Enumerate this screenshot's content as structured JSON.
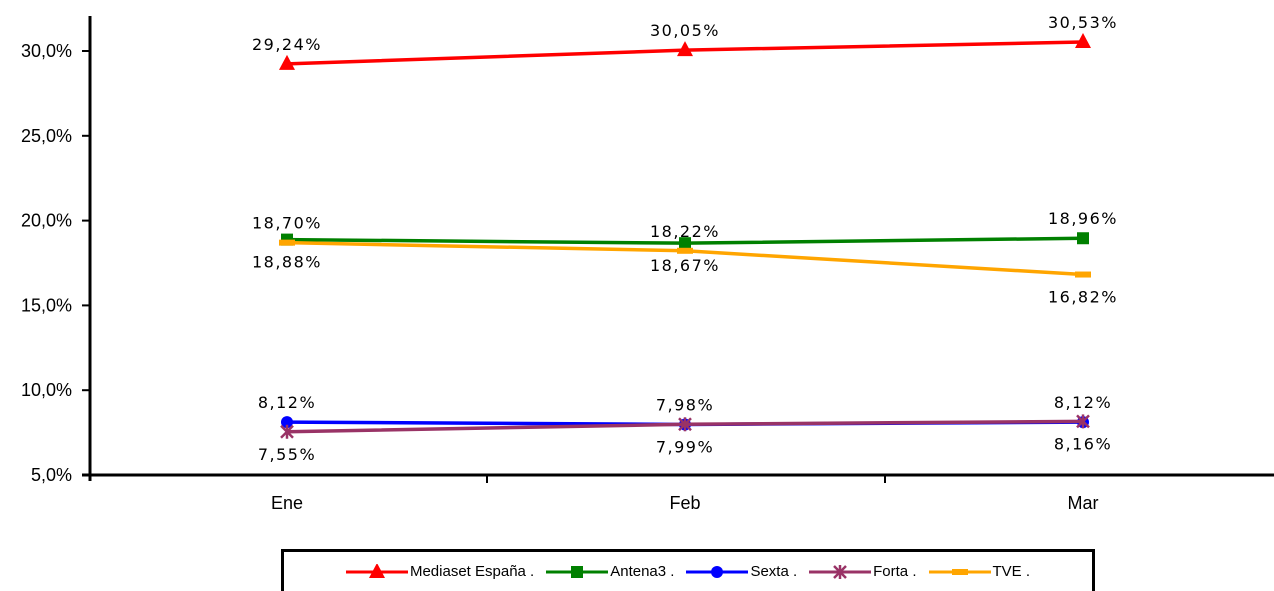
{
  "chart_data": {
    "type": "line",
    "categories": [
      "Ene",
      "Feb",
      "Mar"
    ],
    "ylim": [
      5,
      30
    ],
    "yticks": [
      5,
      10,
      15,
      20,
      25,
      30
    ],
    "ytick_labels": [
      "5,0%",
      "10,0%",
      "15,0%",
      "20,0%",
      "25,0%",
      "30,0%"
    ],
    "legend_position": "bottom",
    "grid": false,
    "series": [
      {
        "name": "Mediaset España .",
        "color": "#ff0000",
        "marker": "triangle",
        "values": [
          29.24,
          30.05,
          30.53
        ],
        "labels": [
          "29,24%",
          "30,05%",
          "30,53%"
        ],
        "label_pos": [
          "above",
          "above",
          "above"
        ]
      },
      {
        "name": "Antena3 .",
        "color": "#008000",
        "marker": "square",
        "values": [
          18.88,
          18.67,
          18.96
        ],
        "labels": [
          "18,88%",
          "18,67%",
          "18,96%"
        ],
        "label_pos": [
          "below",
          "below",
          "above"
        ]
      },
      {
        "name": "Sexta .",
        "color": "#0000ff",
        "marker": "circle",
        "values": [
          8.12,
          7.98,
          8.12
        ],
        "labels": [
          "8,12%",
          "7,98%",
          "8,12%"
        ],
        "label_pos": [
          "above",
          "above",
          "above"
        ]
      },
      {
        "name": "Forta .",
        "color": "#993366",
        "marker": "star",
        "values": [
          7.55,
          7.99,
          8.16
        ],
        "labels": [
          "7,55%",
          "7,99%",
          "8,16%"
        ],
        "label_pos": [
          "below",
          "below",
          "below"
        ]
      },
      {
        "name": "TVE .",
        "color": "#ffa500",
        "marker": "dash",
        "values": [
          18.7,
          18.22,
          16.82
        ],
        "labels": [
          "18,70%",
          "18,22%",
          "16,82%"
        ],
        "label_pos": [
          "above",
          "above",
          "below"
        ]
      }
    ]
  }
}
